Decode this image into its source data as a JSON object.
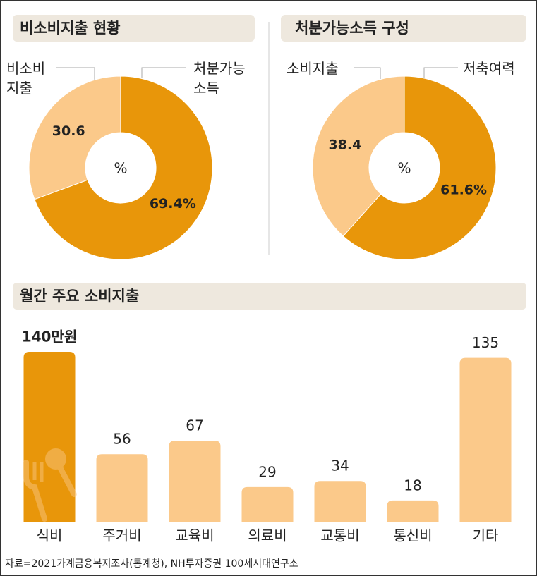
{
  "chart_data": [
    {
      "type": "pie",
      "title": "비소비지출 현황",
      "categories": [
        "비소비\n지출",
        "처분가능\n소득"
      ],
      "values": [
        30.6,
        69.4
      ],
      "value_labels": [
        "30.6",
        "69.4%"
      ],
      "colors": [
        "#fbc98a",
        "#e8960a"
      ],
      "center_label": "%"
    },
    {
      "type": "pie",
      "title": "처분가능소득 구성",
      "categories": [
        "소비지출",
        "저축여력"
      ],
      "values": [
        38.4,
        61.6
      ],
      "value_labels": [
        "38.4",
        "61.6%"
      ],
      "colors": [
        "#fbc98a",
        "#e8960a"
      ],
      "center_label": "%"
    },
    {
      "type": "bar",
      "title": "월간 주요 소비지출",
      "categories": [
        "식비",
        "주거비",
        "교육비",
        "의료비",
        "교통비",
        "통신비",
        "기타"
      ],
      "values": [
        140,
        56,
        67,
        29,
        34,
        18,
        135
      ],
      "value_labels": [
        "140만원",
        "56",
        "67",
        "29",
        "34",
        "18",
        "135"
      ],
      "colors": [
        "#e8960a",
        "#fbc98a",
        "#fbc98a",
        "#fbc98a",
        "#fbc98a",
        "#fbc98a",
        "#fbc98a"
      ]
    }
  ],
  "source": "자료=2021가계금융복지조사(통계청), NH투자증권 100세시대연구소"
}
